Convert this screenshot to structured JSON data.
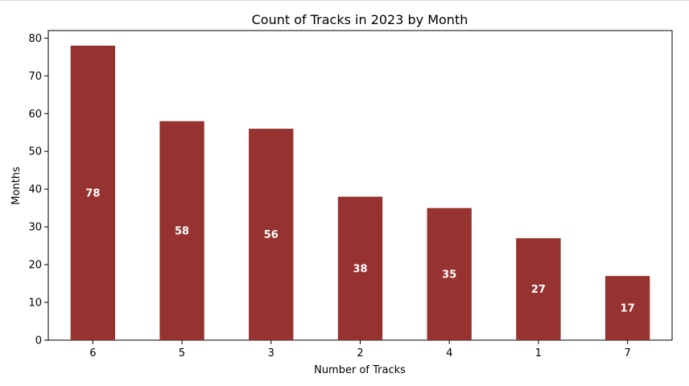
{
  "chart_data": {
    "type": "bar",
    "title": "Count of Tracks in 2023 by Month",
    "xlabel": "Number of Tracks",
    "ylabel": "Months",
    "categories": [
      "6",
      "5",
      "3",
      "2",
      "4",
      "1",
      "7"
    ],
    "values": [
      78,
      58,
      56,
      38,
      35,
      27,
      17
    ],
    "ylim": [
      0,
      82
    ],
    "yticks": [
      0,
      10,
      20,
      30,
      40,
      50,
      60,
      70,
      80
    ],
    "bar_color": "#96322f",
    "data_labels": true,
    "grid": false,
    "legend": "none"
  }
}
